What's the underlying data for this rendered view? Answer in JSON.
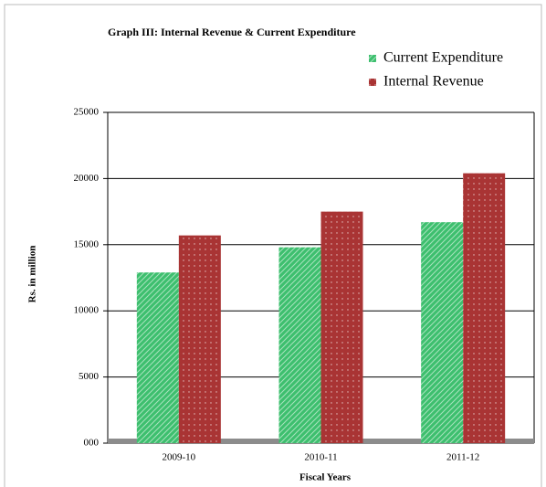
{
  "chart_data": {
    "type": "bar",
    "title": "Graph III: Internal Revenue & Current Expenditure",
    "categories": [
      "2009-10",
      "2010-11",
      "2011-12"
    ],
    "series": [
      {
        "name": "Current Expenditure",
        "color": "#3dbf6e",
        "values": [
          12900,
          14800,
          16700
        ]
      },
      {
        "name": "Internal Revenue",
        "color": "#a93434",
        "values": [
          15700,
          17500,
          20400
        ]
      }
    ],
    "ylim": [
      0,
      25000
    ],
    "yticks": [
      {
        "value": 0,
        "label": "000"
      },
      5000,
      10000,
      15000,
      20000,
      25000
    ],
    "grid": true,
    "y_label": "Rs. in million",
    "x_label": "Fiscal Years",
    "legend": "top-right"
  }
}
